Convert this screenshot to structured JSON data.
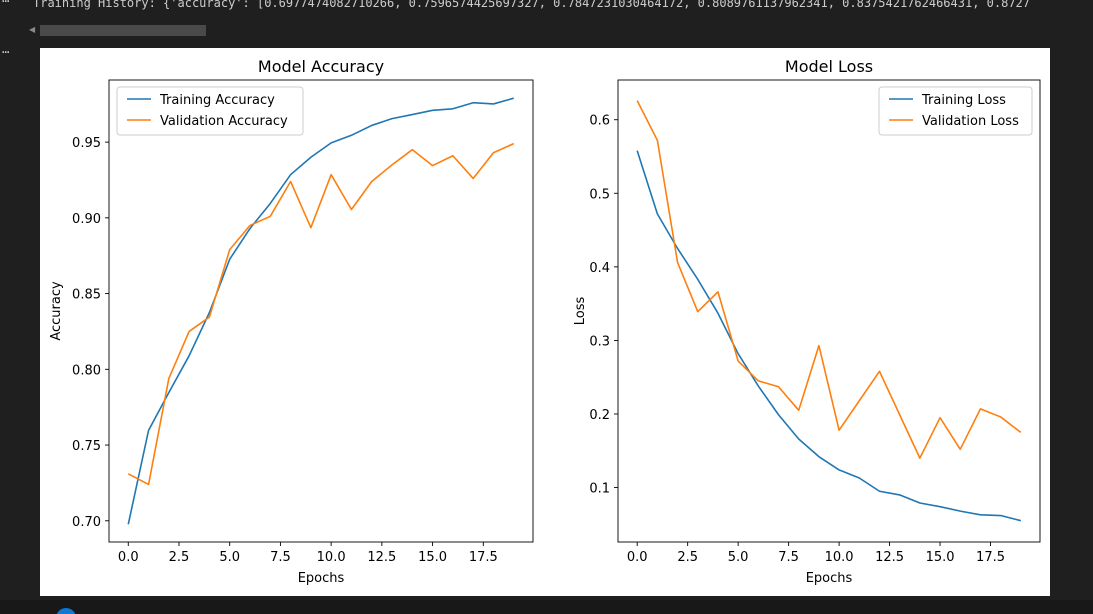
{
  "output": {
    "text": "Training History: {'accuracy': [0.6977474082710266, 0.7596574425697327, 0.7847231030464172, 0.8089761137962341, 0.8375421762466431, 0.8727"
  },
  "chart_data": [
    {
      "type": "line",
      "title": "Model Accuracy",
      "xlabel": "Epochs",
      "ylabel": "Accuracy",
      "xlim": [
        -0.95,
        19.95
      ],
      "ylim": [
        0.686,
        0.991
      ],
      "xticks": [
        0,
        2.5,
        5,
        7.5,
        10,
        12.5,
        15,
        17.5
      ],
      "xtick_labels": [
        "0.0",
        "2.5",
        "5.0",
        "7.5",
        "10.0",
        "12.5",
        "15.0",
        "17.5"
      ],
      "yticks": [
        0.7,
        0.75,
        0.8,
        0.85,
        0.9,
        0.95
      ],
      "ytick_labels": [
        "0.70",
        "0.75",
        "0.80",
        "0.85",
        "0.90",
        "0.95"
      ],
      "legend_position": "upper-left",
      "grid": false,
      "series": [
        {
          "name": "Training Accuracy",
          "color": "#1f77b4",
          "x": [
            0,
            1,
            2,
            3,
            4,
            5,
            6,
            7,
            8,
            9,
            10,
            11,
            12,
            13,
            14,
            15,
            16,
            17,
            18,
            19
          ],
          "values": [
            0.6977,
            0.7597,
            0.7847,
            0.809,
            0.8375,
            0.8727,
            0.893,
            0.9095,
            0.9285,
            0.94,
            0.9495,
            0.9545,
            0.961,
            0.9655,
            0.9682,
            0.971,
            0.972,
            0.976,
            0.9752,
            0.979
          ]
        },
        {
          "name": "Validation Accuracy",
          "color": "#ff7f0e",
          "x": [
            0,
            1,
            2,
            3,
            4,
            5,
            6,
            7,
            8,
            9,
            10,
            11,
            12,
            13,
            14,
            15,
            16,
            17,
            18,
            19
          ],
          "values": [
            0.731,
            0.724,
            0.794,
            0.825,
            0.8345,
            0.879,
            0.895,
            0.901,
            0.924,
            0.8935,
            0.9285,
            0.9055,
            0.924,
            0.935,
            0.945,
            0.9345,
            0.941,
            0.926,
            0.943,
            0.949
          ]
        }
      ]
    },
    {
      "type": "line",
      "title": "Model Loss",
      "xlabel": "Epochs",
      "ylabel": "Loss",
      "xlim": [
        -0.95,
        19.95
      ],
      "ylim": [
        0.026,
        0.654
      ],
      "xticks": [
        0,
        2.5,
        5,
        7.5,
        10,
        12.5,
        15,
        17.5
      ],
      "xtick_labels": [
        "0.0",
        "2.5",
        "5.0",
        "7.5",
        "10.0",
        "12.5",
        "15.0",
        "17.5"
      ],
      "yticks": [
        0.1,
        0.2,
        0.3,
        0.4,
        0.5,
        0.6
      ],
      "ytick_labels": [
        "0.1",
        "0.2",
        "0.3",
        "0.4",
        "0.5",
        "0.6"
      ],
      "legend_position": "upper-right",
      "grid": false,
      "series": [
        {
          "name": "Training Loss",
          "color": "#1f77b4",
          "x": [
            0,
            1,
            2,
            3,
            4,
            5,
            6,
            7,
            8,
            9,
            10,
            11,
            12,
            13,
            14,
            15,
            16,
            17,
            18,
            19
          ],
          "values": [
            0.558,
            0.472,
            0.425,
            0.383,
            0.337,
            0.282,
            0.238,
            0.199,
            0.166,
            0.142,
            0.124,
            0.113,
            0.095,
            0.09,
            0.079,
            0.074,
            0.068,
            0.063,
            0.062,
            0.055
          ]
        },
        {
          "name": "Validation Loss",
          "color": "#ff7f0e",
          "x": [
            0,
            1,
            2,
            3,
            4,
            5,
            6,
            7,
            8,
            9,
            10,
            11,
            12,
            13,
            14,
            15,
            16,
            17,
            18,
            19
          ],
          "values": [
            0.626,
            0.572,
            0.406,
            0.339,
            0.366,
            0.272,
            0.245,
            0.237,
            0.205,
            0.293,
            0.178,
            0.218,
            0.258,
            0.199,
            0.14,
            0.195,
            0.152,
            0.207,
            0.196,
            0.175
          ]
        }
      ]
    }
  ]
}
